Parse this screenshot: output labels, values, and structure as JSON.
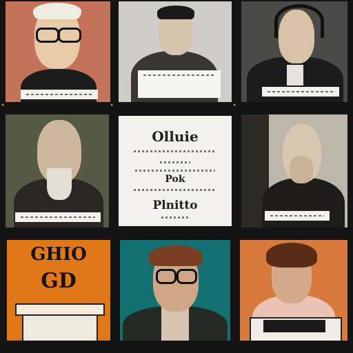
{
  "grid": {
    "rows": 3,
    "cols": 3,
    "tiles": [
      {
        "row": 1,
        "col": 1,
        "kind": "portrait",
        "subject": "man-with-glasses",
        "bg": "#c4735a"
      },
      {
        "row": 1,
        "col": 2,
        "kind": "portrait",
        "subject": "man-holding-sign",
        "bg": "#cfcdc8"
      },
      {
        "row": 1,
        "col": 3,
        "kind": "portrait",
        "subject": "man-with-headphones",
        "bg": "#4a4a48"
      },
      {
        "row": 2,
        "col": 1,
        "kind": "portrait",
        "subject": "bearded-man",
        "bg": "#565a44"
      },
      {
        "row": 2,
        "col": 2,
        "kind": "document",
        "bg": "#f2f1ee"
      },
      {
        "row": 2,
        "col": 3,
        "kind": "portrait",
        "subject": "man-hand-to-face",
        "bg": "#bdb7aa"
      },
      {
        "row": 3,
        "col": 1,
        "kind": "poster",
        "subject": "ornate-sign",
        "bg": "#e0781a"
      },
      {
        "row": 3,
        "col": 2,
        "kind": "portrait",
        "subject": "man-with-glasses",
        "bg": "#137070"
      },
      {
        "row": 3,
        "col": 3,
        "kind": "portrait",
        "subject": "man-at-desk",
        "bg": "#d87a3c"
      }
    ]
  },
  "document": {
    "heading": "Olluie",
    "middle_word": "Pok",
    "footer_word": "Plnitto"
  },
  "poster": {
    "top_text": "GHIO",
    "bottom_text": "GD"
  }
}
